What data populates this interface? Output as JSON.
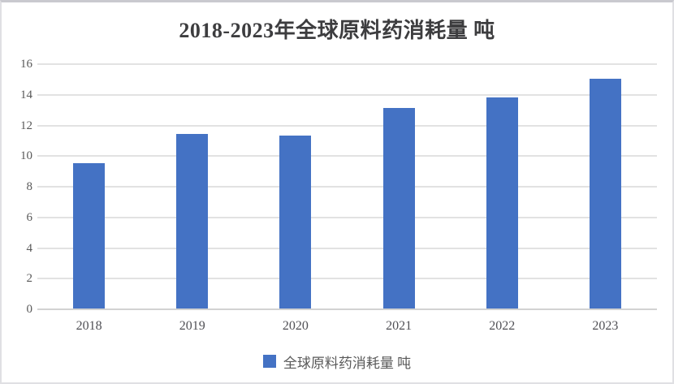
{
  "chart_data": {
    "type": "bar",
    "title": "2018-2023年全球原料药消耗量 吨",
    "categories": [
      "2018",
      "2019",
      "2020",
      "2021",
      "2022",
      "2023"
    ],
    "series": [
      {
        "name": "全球原料药消耗量 吨",
        "values": [
          9.5,
          11.4,
          11.3,
          13.1,
          13.8,
          15
        ]
      }
    ],
    "xlabel": "",
    "ylabel": "",
    "ylim": [
      0,
      16
    ],
    "ytick_step": 2,
    "ytick_labels": [
      "0",
      "2",
      "4",
      "6",
      "8",
      "10",
      "12",
      "14",
      "16"
    ],
    "grid": true,
    "legend_position": "bottom"
  },
  "colors": {
    "bar": "#4472C4",
    "gridline": "#e2e2e2",
    "axis_line": "#d2d2d2",
    "title_text": "#3d3d3f",
    "tick_text": "#595959",
    "background": "#ffffff"
  },
  "legend": {
    "label": "全球原料药消耗量 吨"
  }
}
